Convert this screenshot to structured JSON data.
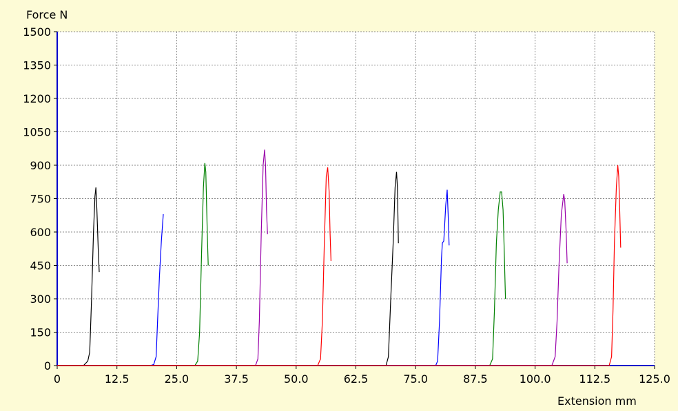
{
  "chart_data": {
    "type": "line",
    "ylabel": "Force N",
    "xlabel": "Extension mm",
    "xlim": [
      0,
      125
    ],
    "ylim": [
      0,
      1500
    ],
    "x_ticks": [
      "0",
      "12.5",
      "25.0",
      "37.5",
      "50.0",
      "62.5",
      "75.0",
      "87.5",
      "100.0",
      "112.5",
      "125.0"
    ],
    "x_tick_values": [
      0,
      12.5,
      25,
      37.5,
      50,
      62.5,
      75,
      87.5,
      100,
      112.5,
      125
    ],
    "y_ticks": [
      "0",
      "150",
      "300",
      "450",
      "600",
      "750",
      "900",
      "1050",
      "1200",
      "1350",
      "1500"
    ],
    "y_tick_values": [
      0,
      150,
      300,
      450,
      600,
      750,
      900,
      1050,
      1200,
      1350,
      1500
    ],
    "grid": true,
    "series": [
      {
        "color": "#000000",
        "points": [
          [
            0,
            0
          ],
          [
            5.5,
            0
          ],
          [
            6.4,
            20
          ],
          [
            6.8,
            60
          ],
          [
            7.2,
            300
          ],
          [
            7.6,
            600
          ],
          [
            7.9,
            760
          ],
          [
            8.1,
            800
          ],
          [
            8.3,
            700
          ],
          [
            8.6,
            520
          ],
          [
            8.8,
            420
          ]
        ]
      },
      {
        "color": "#0000ff",
        "points": [
          [
            0,
            0
          ],
          [
            19.5,
            0
          ],
          [
            20.2,
            5
          ],
          [
            20.7,
            40
          ],
          [
            21.0,
            200
          ],
          [
            21.4,
            400
          ],
          [
            21.8,
            560
          ],
          [
            22.2,
            680
          ]
        ]
      },
      {
        "color": "#008000",
        "points": [
          [
            0,
            0
          ],
          [
            28.8,
            0
          ],
          [
            29.4,
            20
          ],
          [
            29.8,
            150
          ],
          [
            30.2,
            500
          ],
          [
            30.6,
            800
          ],
          [
            30.9,
            910
          ],
          [
            31.1,
            870
          ],
          [
            31.4,
            600
          ],
          [
            31.6,
            450
          ]
        ]
      },
      {
        "color": "#9900aa",
        "points": [
          [
            0,
            0
          ],
          [
            41.5,
            0
          ],
          [
            42.0,
            30
          ],
          [
            42.3,
            200
          ],
          [
            42.7,
            600
          ],
          [
            43.1,
            900
          ],
          [
            43.4,
            970
          ],
          [
            43.6,
            900
          ],
          [
            43.8,
            700
          ],
          [
            44.0,
            590
          ]
        ]
      },
      {
        "color": "#ff0000",
        "points": [
          [
            0,
            0
          ],
          [
            54.5,
            0
          ],
          [
            55.1,
            30
          ],
          [
            55.5,
            200
          ],
          [
            55.9,
            550
          ],
          [
            56.3,
            850
          ],
          [
            56.6,
            890
          ],
          [
            56.9,
            780
          ],
          [
            57.1,
            600
          ],
          [
            57.3,
            470
          ]
        ]
      },
      {
        "color": "#000000",
        "points": [
          [
            0,
            0
          ],
          [
            68.8,
            0
          ],
          [
            69.3,
            40
          ],
          [
            69.8,
            300
          ],
          [
            70.3,
            550
          ],
          [
            70.7,
            800
          ],
          [
            71.0,
            870
          ],
          [
            71.2,
            800
          ],
          [
            71.4,
            550
          ]
        ]
      },
      {
        "color": "#0000ff",
        "points": [
          [
            79.2,
            0
          ],
          [
            79.6,
            20
          ],
          [
            80.0,
            200
          ],
          [
            80.4,
            480
          ],
          [
            80.6,
            550
          ],
          [
            80.9,
            560
          ],
          [
            81.3,
            720
          ],
          [
            81.6,
            790
          ],
          [
            81.8,
            680
          ],
          [
            82.0,
            540
          ]
        ]
      },
      {
        "color": "#008000",
        "points": [
          [
            90.5,
            0
          ],
          [
            91.1,
            30
          ],
          [
            91.5,
            250
          ],
          [
            91.9,
            550
          ],
          [
            92.3,
            700
          ],
          [
            92.7,
            780
          ],
          [
            93.0,
            780
          ],
          [
            93.3,
            700
          ],
          [
            93.5,
            550
          ],
          [
            93.8,
            300
          ]
        ]
      },
      {
        "color": "#9900aa",
        "points": [
          [
            0,
            0
          ],
          [
            103.5,
            0
          ],
          [
            104.2,
            40
          ],
          [
            104.6,
            200
          ],
          [
            105.0,
            450
          ],
          [
            105.5,
            680
          ],
          [
            106.0,
            770
          ],
          [
            106.2,
            740
          ],
          [
            106.5,
            600
          ],
          [
            106.7,
            460
          ]
        ]
      },
      {
        "color": "#ff0000",
        "points": [
          [
            0,
            0
          ],
          [
            115.5,
            0
          ],
          [
            116.0,
            40
          ],
          [
            116.3,
            250
          ],
          [
            116.6,
            550
          ],
          [
            117.0,
            800
          ],
          [
            117.3,
            900
          ],
          [
            117.5,
            850
          ],
          [
            117.7,
            700
          ],
          [
            117.9,
            530
          ]
        ]
      }
    ]
  }
}
